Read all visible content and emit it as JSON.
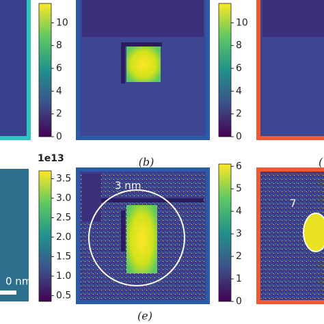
{
  "panels": {
    "b": {
      "label": "(b)"
    },
    "c": {
      "label": "("
    },
    "e": {
      "label": "(e)",
      "annotation": "3 nm"
    },
    "d": {
      "annotation": "0 nm"
    },
    "f": {
      "annotation": "7"
    }
  },
  "colorbars": [
    {
      "range": [
        0,
        11.7
      ],
      "ticks": [
        0,
        2,
        4,
        6,
        8,
        10
      ]
    },
    {
      "range": [
        0,
        11.7
      ],
      "ticks": [
        0,
        2,
        4,
        6,
        8,
        10
      ]
    },
    {
      "range": [
        0.35,
        3.7
      ],
      "offset_label": "1e13",
      "ticks": [
        0.5,
        {
          "value": 1,
          "label": "1.0"
        },
        1.5,
        {
          "value": 2,
          "label": "2.0"
        },
        2.5,
        {
          "value": 3,
          "label": "3.0"
        },
        3.5
      ]
    },
    {
      "range": [
        0,
        6.1
      ],
      "ticks": [
        0,
        1,
        2,
        3,
        4,
        5,
        6
      ]
    }
  ]
}
